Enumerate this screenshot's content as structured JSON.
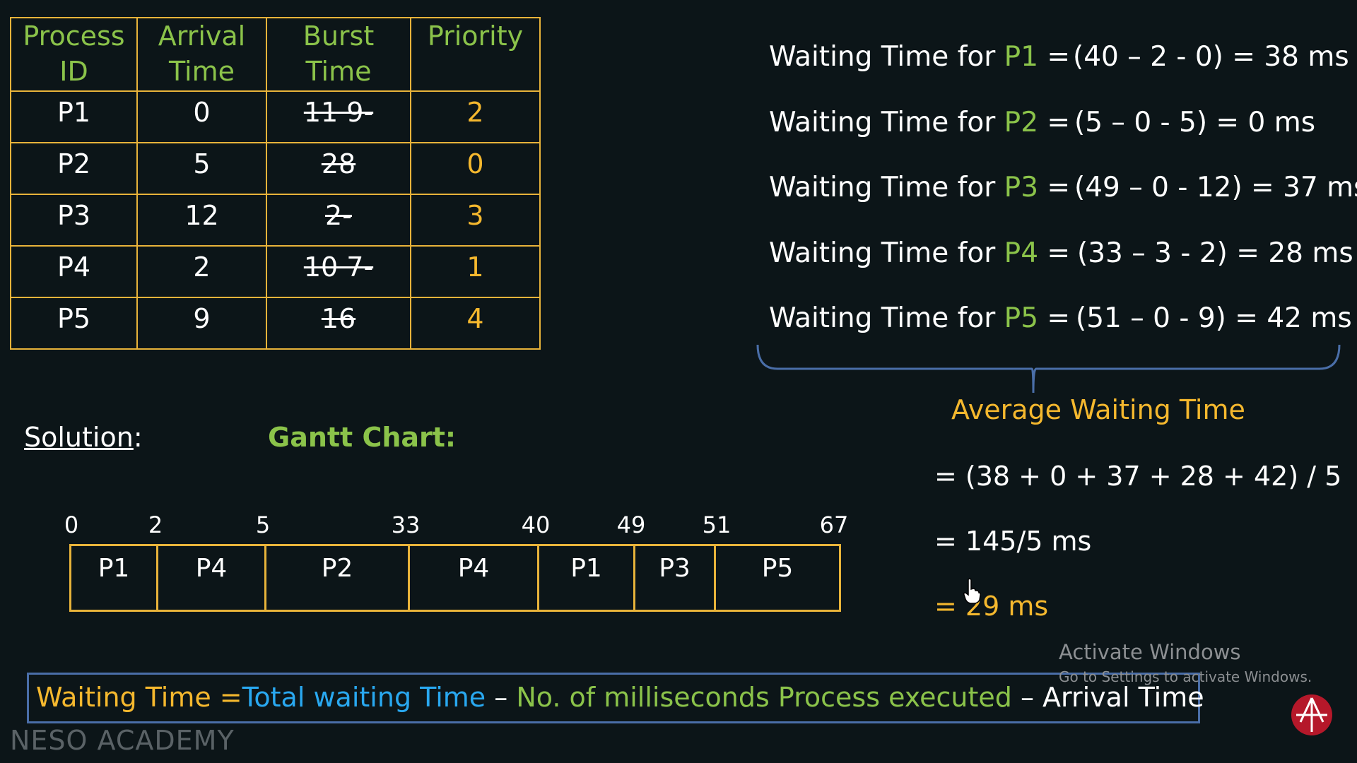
{
  "table": {
    "headers": [
      [
        "Process",
        "ID"
      ],
      [
        "Arrival",
        "Time"
      ],
      [
        "Burst",
        "Time"
      ],
      [
        "Priority"
      ]
    ],
    "rows": [
      {
        "pid": "P1",
        "arrival": "0",
        "burst_struck": "11 9-",
        "priority": "2"
      },
      {
        "pid": "P2",
        "arrival": "5",
        "burst_struck": "28",
        "priority": "0"
      },
      {
        "pid": "P3",
        "arrival": "12",
        "burst_struck": "2-",
        "priority": "3"
      },
      {
        "pid": "P4",
        "arrival": "2",
        "burst_struck": "10 7-",
        "priority": "1"
      },
      {
        "pid": "P5",
        "arrival": "9",
        "burst_struck": "16",
        "priority": "4"
      }
    ]
  },
  "waiting": [
    {
      "prefix": "Waiting Time for ",
      "pname": "P1",
      "eq": " =",
      "expr": "(40 – 2 - 0)  = 38 ms"
    },
    {
      "prefix": "Waiting Time for ",
      "pname": "P2",
      "eq": " =",
      "expr": "(5 – 0 - 5)    =  0 ms"
    },
    {
      "prefix": "Waiting Time for ",
      "pname": "P3",
      "eq": " =",
      "expr": "(49 – 0 - 12) = 37 ms"
    },
    {
      "prefix": "Waiting Time for ",
      "pname": "P4",
      "eq": " =",
      "expr": "(33 – 3 - 2) =  28 ms"
    },
    {
      "prefix": "Waiting Time for ",
      "pname": "P5",
      "eq": " =",
      "expr": "(51 – 0 - 9) =  42 ms"
    }
  ],
  "average": {
    "title": "Average Waiting Time",
    "line1": "= (38 + 0 + 37 + 28 + 42) / 5",
    "line2": "= 145/5 ms",
    "line3": "= 29 ms"
  },
  "solution_label": "Solution",
  "solution_colon": ":",
  "gantt_title": "Gantt Chart:",
  "gantt": {
    "ticks": [
      "0",
      "2",
      "5",
      "33",
      "40",
      "49",
      "51",
      "67"
    ],
    "blocks": [
      "P1",
      "P4",
      "P2",
      "P4",
      "P1",
      "P3",
      "P5"
    ]
  },
  "formula": {
    "wt": "Waiting Time =",
    "total": "Total waiting Time",
    "dash1": " – ",
    "no": "No. of milliseconds Process executed",
    "dash2": " – ",
    "arrival": "Arrival Time"
  },
  "watermark": {
    "line1": "Activate Windows",
    "line2": "Go to Settings to activate Windows."
  },
  "brand": "NESO ACADEMY",
  "colors": {
    "green": "#8bc34a",
    "orange": "#f5b82e",
    "blue": "#29a8f0",
    "border": "#e8b33a"
  }
}
